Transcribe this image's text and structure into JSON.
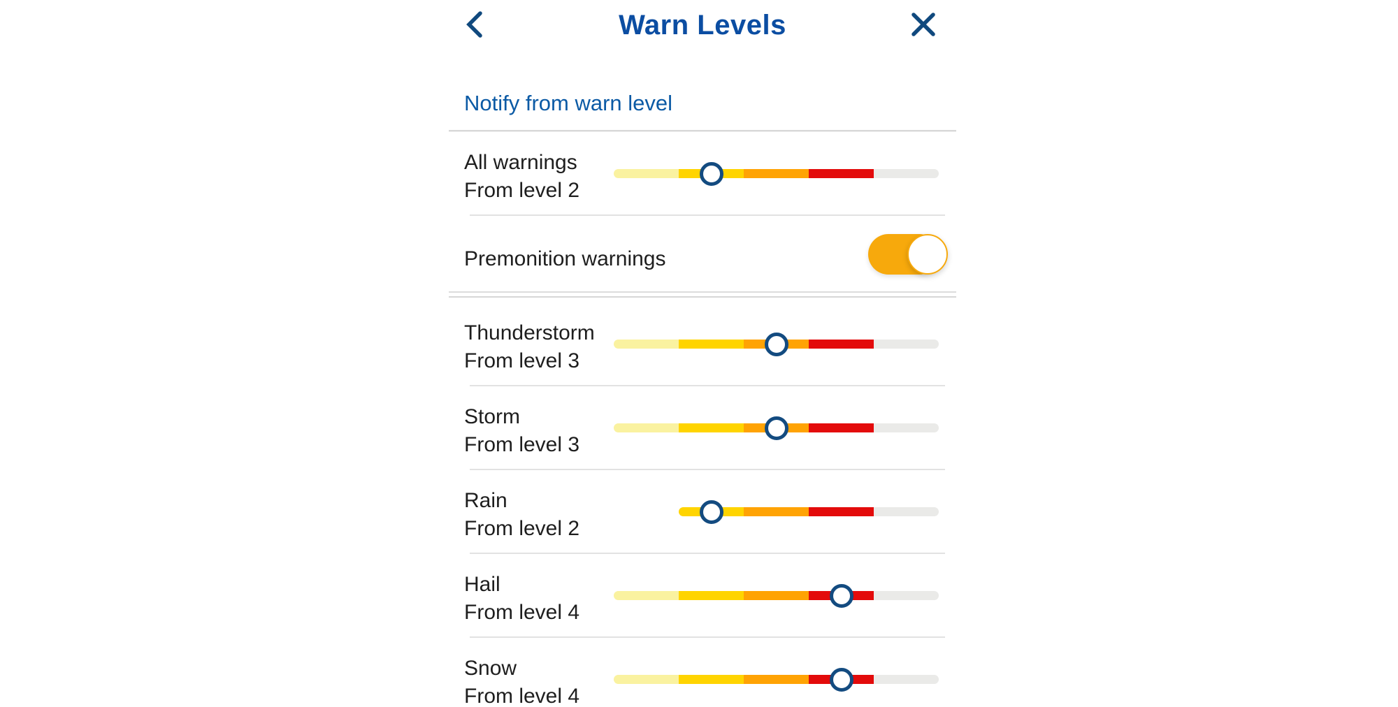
{
  "header": {
    "title": "Warn Levels",
    "back_icon": "chevron-left-icon",
    "close_icon": "close-x-icon"
  },
  "section_heading": "Notify from warn level",
  "toggle_row": {
    "label": "Premonition warnings",
    "state": "on"
  },
  "sliders": [
    {
      "label": "All warnings",
      "sublabel": "From level 2",
      "level": 2,
      "min_level": 1
    },
    {
      "label": "Thunderstorm",
      "sublabel": "From level 3",
      "level": 3,
      "min_level": 1
    },
    {
      "label": "Storm",
      "sublabel": "From level 3",
      "level": 3,
      "min_level": 1
    },
    {
      "label": "Rain",
      "sublabel": "From level 2",
      "level": 2,
      "min_level": 2
    },
    {
      "label": "Hail",
      "sublabel": "From level 4",
      "level": 4,
      "min_level": 1
    },
    {
      "label": "Snow",
      "sublabel": "From level 4",
      "level": 4,
      "min_level": 1
    }
  ],
  "colors": {
    "title_blue": "#0B4DA2",
    "icon_blue": "#10497E",
    "heading_blue": "#0B5AA5",
    "text_dark": "#1E1E1E",
    "toggle_on": "#F7A90C",
    "handle_ring": "#134B80",
    "level_colors": [
      "#FAF2A0",
      "#FFD400",
      "#FFA304",
      "#E30B0B"
    ],
    "track_remainder": "#EAEAE8"
  }
}
